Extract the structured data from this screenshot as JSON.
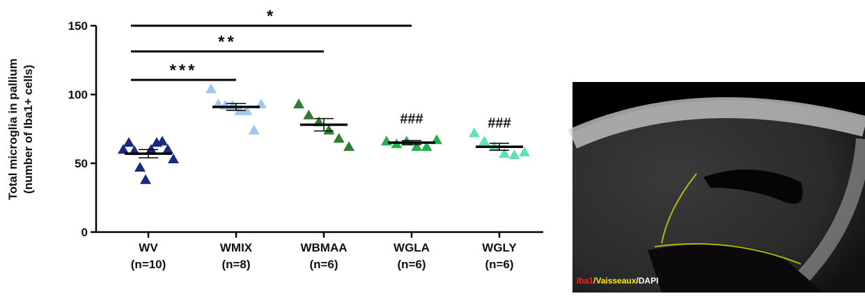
{
  "chart_data": {
    "type": "dotplot",
    "ylabel": [
      "Total microglia in pallium",
      "(number of Iba1+ cells)"
    ],
    "categories": [
      "WV",
      "WMIX",
      "WBMAA",
      "WGLA",
      "WGLY"
    ],
    "n_labels": [
      "(n=10)",
      "(n=8)",
      "(n=6)",
      "(n=6)",
      "(n=6)"
    ],
    "colors": [
      "#1b2a7a",
      "#a3c6ee",
      "#2e7d32",
      "#22b14c",
      "#5fe0b5"
    ],
    "values": [
      [
        60,
        65,
        59,
        47,
        38,
        60,
        65,
        66,
        60,
        53
      ],
      [
        104,
        93,
        92,
        92,
        88,
        88,
        74,
        93
      ],
      [
        93,
        85,
        80,
        74,
        68,
        62
      ],
      [
        66,
        64,
        66,
        62,
        62,
        67
      ],
      [
        72,
        66,
        62,
        57,
        56,
        58
      ]
    ],
    "means": [
      57,
      91,
      78,
      65,
      62
    ],
    "errors": [
      3,
      2.5,
      4.5,
      1.5,
      2.5
    ],
    "ylim": [
      0,
      150
    ],
    "yticks": [
      0,
      50,
      100,
      150
    ],
    "comparisons": [
      {
        "groups": [
          "WV",
          "WMIX"
        ],
        "label": "***"
      },
      {
        "groups": [
          "WV",
          "WBMAA"
        ],
        "label": "**"
      },
      {
        "groups": [
          "WV",
          "WGLA"
        ],
        "label": "*"
      }
    ],
    "group_marks": [
      null,
      null,
      null,
      "###",
      "###"
    ]
  },
  "image": {
    "caption": [
      "Iba1",
      "/Vaisseaux",
      "/DAPI"
    ],
    "caption_colors": [
      "#ff2020",
      "#ffee00",
      "#ffffff"
    ]
  }
}
